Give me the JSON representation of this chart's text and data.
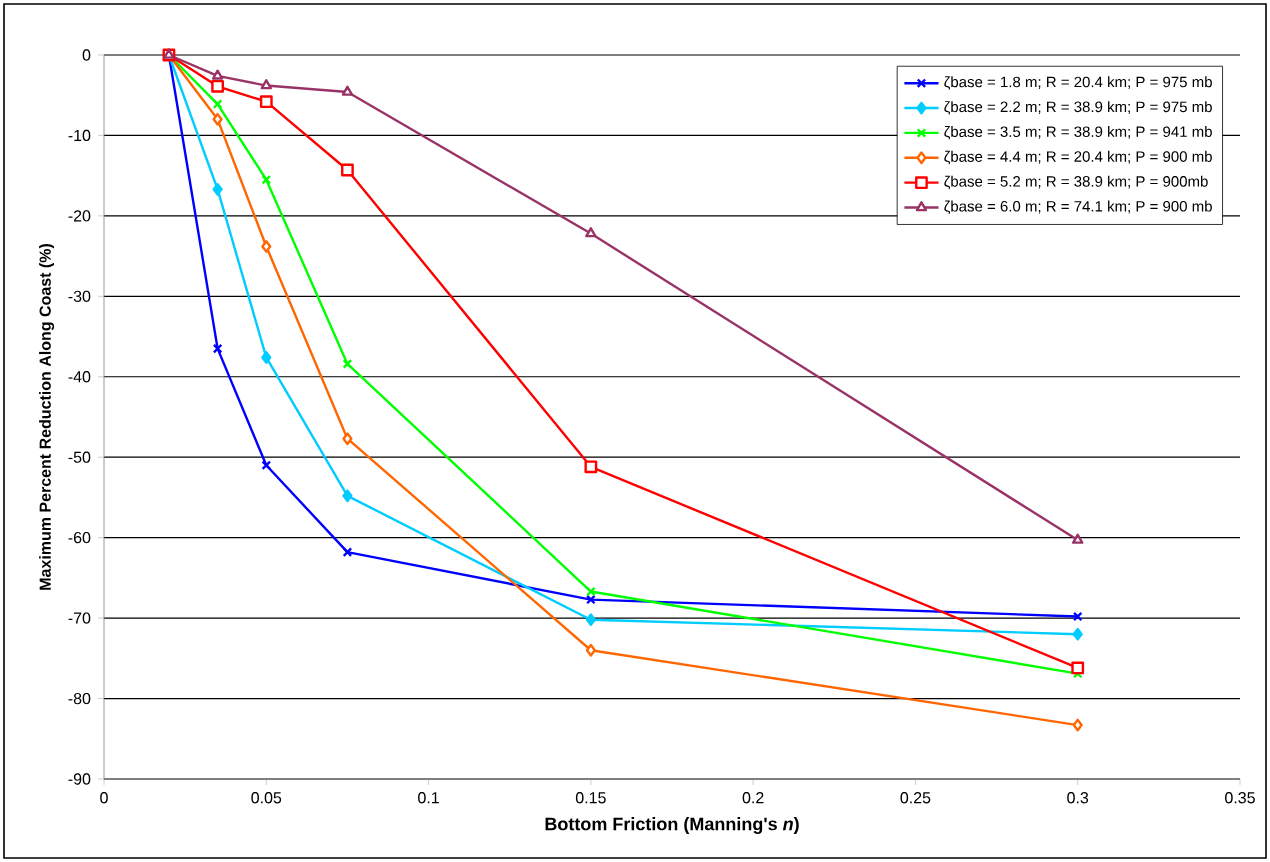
{
  "chart_data": {
    "type": "line",
    "xlabel": "Bottom Friction (Manning's *n*)",
    "ylabel": "Maximum Percent Reduction Along Coast (%)",
    "x": [
      0.02,
      0.035,
      0.05,
      0.075,
      0.15,
      0.3
    ],
    "series": [
      {
        "name": "ζbase = 1.8 m; R = 20.4 km; P = 975 mb",
        "color": "#0000ff",
        "marker": "cross",
        "values": [
          0,
          -36.5,
          -51.0,
          -61.8,
          -67.7,
          -69.8
        ]
      },
      {
        "name": "ζbase = 2.2 m; R = 38.9 km; P = 975 mb",
        "color": "#00ccff",
        "marker": "diamond",
        "values": [
          0,
          -16.7,
          -37.6,
          -54.8,
          -70.2,
          -72.0
        ]
      },
      {
        "name": "ζbase = 3.5 m; R = 38.9 km; P = 941 mb",
        "color": "#00ff00",
        "marker": "cross",
        "values": [
          0,
          -6.1,
          -15.5,
          -38.4,
          -66.7,
          -76.9
        ]
      },
      {
        "name": "ζbase = 4.4 m; R = 20.4 km; P = 900 mb",
        "color": "#ff6600",
        "marker": "diamond",
        "values": [
          0,
          -8.0,
          -23.8,
          -47.7,
          -74.0,
          -83.3
        ]
      },
      {
        "name": "ζbase = 5.2 m; R = 38.9 km; P = 900mb",
        "color": "#ff0000",
        "marker": "square",
        "values": [
          0,
          -3.9,
          -5.8,
          -14.3,
          -51.2,
          -76.2
        ]
      },
      {
        "name": "ζbase = 6.0 m; R = 74.1 km; P = 900 mb",
        "color": "#993366",
        "marker": "triangle",
        "values": [
          0,
          -2.6,
          -3.8,
          -4.6,
          -22.2,
          -60.3
        ]
      }
    ],
    "xlim": [
      0,
      0.35
    ],
    "ylim": [
      -90,
      0
    ],
    "xticks": [
      0,
      0.05,
      0.1,
      0.15,
      0.2,
      0.25,
      0.3,
      0.35
    ],
    "yticks": [
      -90,
      -80,
      -70,
      -60,
      -50,
      -40,
      -30,
      -20,
      -10,
      0
    ],
    "grid": "y",
    "legend": "top right",
    "line_style": "solid"
  }
}
